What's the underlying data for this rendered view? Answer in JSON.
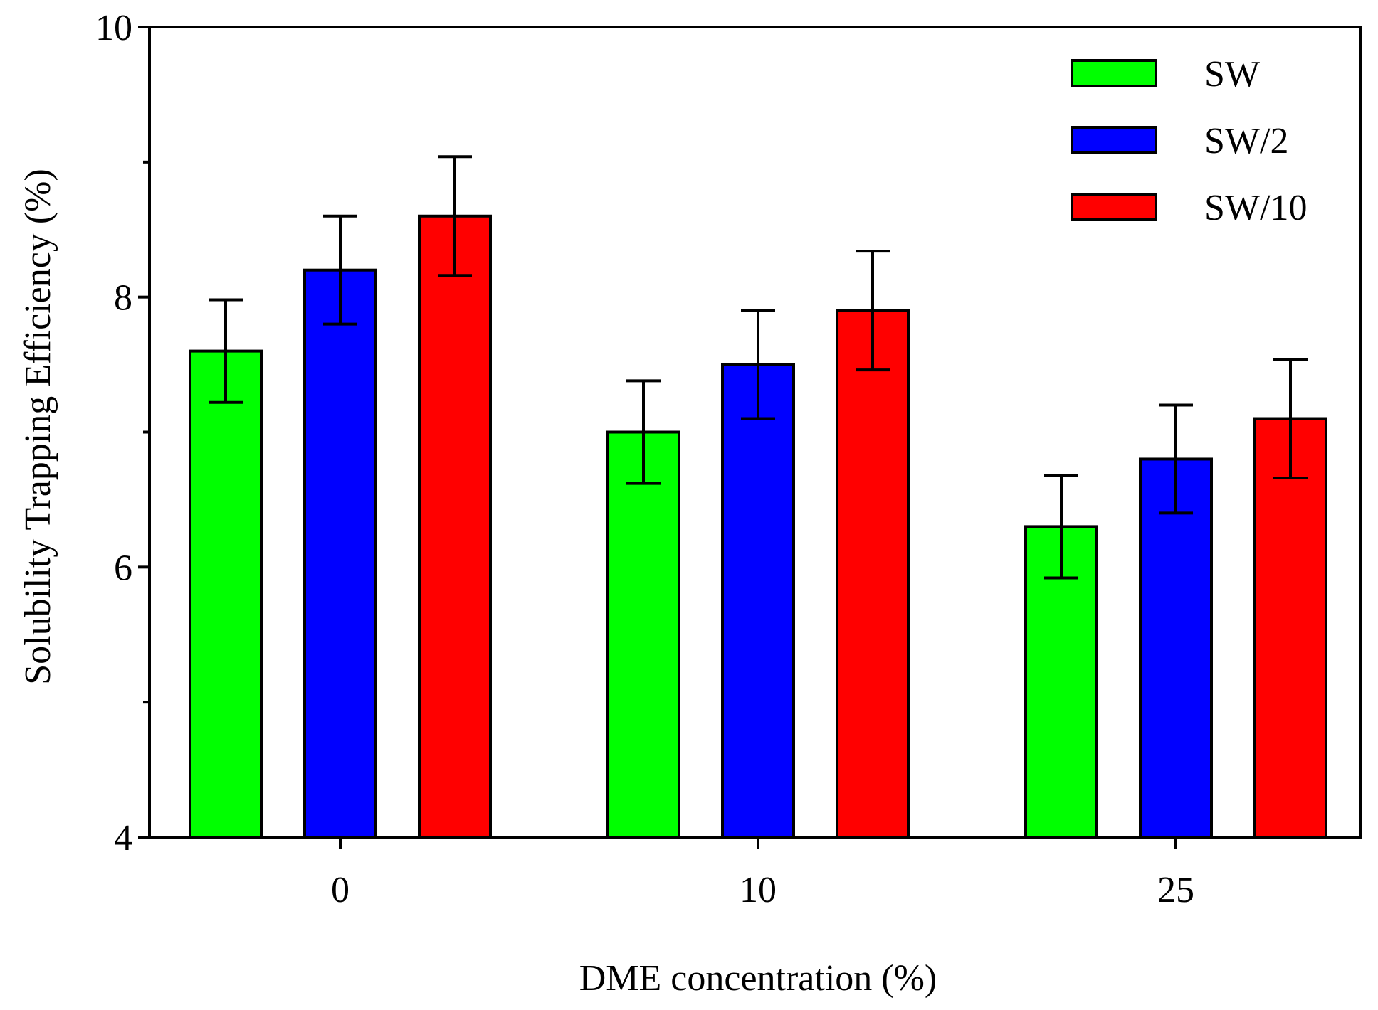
{
  "chart_data": {
    "type": "bar",
    "title": "",
    "xlabel": "DME concentration (%)",
    "ylabel": "Solubility Trapping Efficiency (%)",
    "categories": [
      "0",
      "10",
      "25"
    ],
    "ylim": [
      4,
      10
    ],
    "y_major_ticks": [
      4,
      6,
      8,
      10
    ],
    "y_minor_ticks": [
      5,
      7,
      9
    ],
    "grid": false,
    "legend_position": "top-right",
    "series": [
      {
        "name": "SW",
        "color": "#00ff00",
        "values": [
          7.6,
          7.0,
          6.3
        ],
        "errors": [
          0.38,
          0.38,
          0.38
        ]
      },
      {
        "name": "SW/2",
        "color": "#0000ff",
        "values": [
          8.2,
          7.5,
          6.8
        ],
        "errors": [
          0.4,
          0.4,
          0.4
        ]
      },
      {
        "name": "SW/10",
        "color": "#ff0000",
        "values": [
          8.6,
          7.9,
          7.1
        ],
        "errors": [
          0.44,
          0.44,
          0.44
        ]
      }
    ]
  }
}
